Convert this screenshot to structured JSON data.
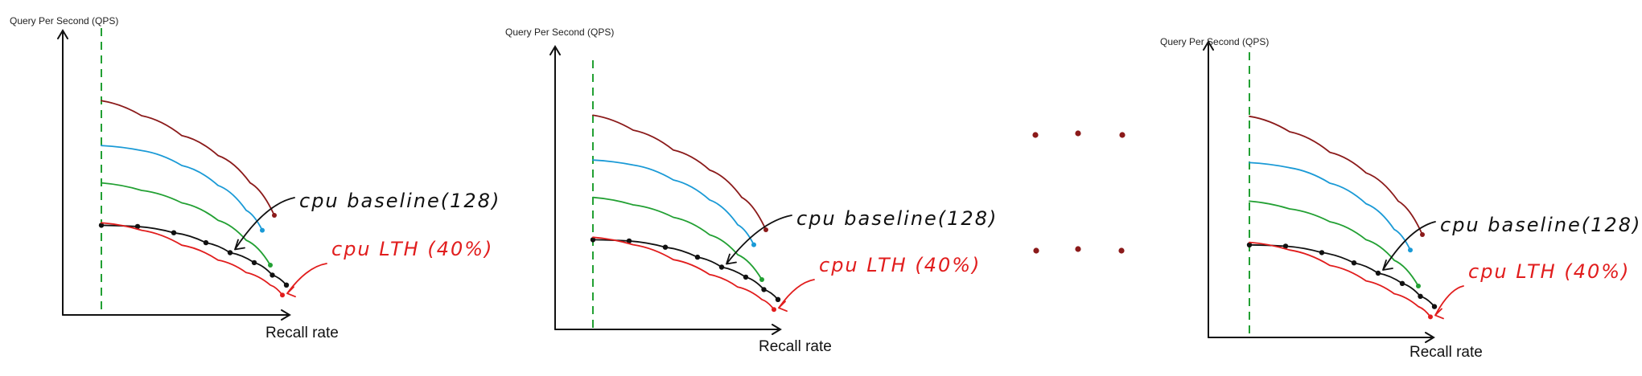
{
  "chart_data": [
    {
      "type": "line",
      "title": "",
      "xlabel": "Recall rate",
      "ylabel": "Query Per Second (QPS)",
      "grid": false,
      "annotations": [
        {
          "text": "cpu baseline(128)",
          "color": "#111111",
          "points_to": "cpu baseline"
        },
        {
          "text": "cpu LTH (40%)",
          "color": "#e11d1d",
          "points_to": "cpu LTH"
        }
      ],
      "series": [
        {
          "color": "#8b1a1a",
          "x": [
            0.0,
            0.2,
            0.4,
            0.58,
            0.74,
            0.86
          ],
          "y": [
            0.86,
            0.8,
            0.72,
            0.64,
            0.53,
            0.4
          ]
        },
        {
          "color": "#1a9ad6",
          "x": [
            0.0,
            0.2,
            0.4,
            0.58,
            0.72,
            0.8
          ],
          "y": [
            0.68,
            0.66,
            0.6,
            0.52,
            0.42,
            0.34
          ]
        },
        {
          "color": "#22a033",
          "x": [
            0.0,
            0.2,
            0.4,
            0.58,
            0.72,
            0.84
          ],
          "y": [
            0.53,
            0.5,
            0.45,
            0.38,
            0.3,
            0.2
          ]
        },
        {
          "name": "cpu baseline",
          "color": "#111111",
          "markers": true,
          "x": [
            0.0,
            0.18,
            0.36,
            0.52,
            0.64,
            0.76,
            0.85,
            0.92
          ],
          "y": [
            0.36,
            0.355,
            0.33,
            0.29,
            0.25,
            0.21,
            0.16,
            0.12
          ]
        },
        {
          "name": "cpu LTH",
          "color": "#e11d1d",
          "x": [
            0.0,
            0.2,
            0.4,
            0.58,
            0.72,
            0.84,
            0.9
          ],
          "y": [
            0.37,
            0.34,
            0.28,
            0.22,
            0.17,
            0.12,
            0.08
          ]
        }
      ]
    },
    {
      "type": "line",
      "title": "",
      "xlabel": "Recall rate",
      "ylabel": "Query Per Second (QPS)",
      "grid": false,
      "annotations": [
        {
          "text": "cpu baseline(128)",
          "color": "#111111",
          "points_to": "cpu baseline"
        },
        {
          "text": "cpu LTH (40%)",
          "color": "#e11d1d",
          "points_to": "cpu LTH"
        }
      ],
      "series": [
        {
          "color": "#8b1a1a",
          "x": [
            0.0,
            0.2,
            0.4,
            0.58,
            0.74,
            0.86
          ],
          "y": [
            0.86,
            0.8,
            0.72,
            0.64,
            0.53,
            0.4
          ]
        },
        {
          "color": "#1a9ad6",
          "x": [
            0.0,
            0.2,
            0.4,
            0.58,
            0.72,
            0.8
          ],
          "y": [
            0.68,
            0.66,
            0.6,
            0.52,
            0.42,
            0.34
          ]
        },
        {
          "color": "#22a033",
          "x": [
            0.0,
            0.2,
            0.4,
            0.58,
            0.72,
            0.84
          ],
          "y": [
            0.53,
            0.5,
            0.45,
            0.38,
            0.3,
            0.2
          ]
        },
        {
          "name": "cpu baseline",
          "color": "#111111",
          "markers": true,
          "x": [
            0.0,
            0.18,
            0.36,
            0.52,
            0.64,
            0.76,
            0.85,
            0.92
          ],
          "y": [
            0.36,
            0.355,
            0.33,
            0.29,
            0.25,
            0.21,
            0.16,
            0.12
          ]
        },
        {
          "name": "cpu LTH",
          "color": "#e11d1d",
          "x": [
            0.0,
            0.2,
            0.4,
            0.58,
            0.72,
            0.84,
            0.9
          ],
          "y": [
            0.37,
            0.34,
            0.28,
            0.22,
            0.17,
            0.12,
            0.08
          ]
        }
      ]
    },
    {
      "type": "line",
      "title": "",
      "xlabel": "Recall rate",
      "ylabel": "Query Per Second (QPS)",
      "grid": false,
      "annotations": [
        {
          "text": "cpu baseline(128)",
          "color": "#111111",
          "points_to": "cpu baseline"
        },
        {
          "text": "cpu LTH (40%)",
          "color": "#e11d1d",
          "points_to": "cpu LTH"
        }
      ],
      "series": [
        {
          "color": "#8b1a1a",
          "x": [
            0.0,
            0.2,
            0.4,
            0.58,
            0.74,
            0.86
          ],
          "y": [
            0.86,
            0.8,
            0.72,
            0.64,
            0.53,
            0.4
          ]
        },
        {
          "color": "#1a9ad6",
          "x": [
            0.0,
            0.2,
            0.4,
            0.58,
            0.72,
            0.8
          ],
          "y": [
            0.68,
            0.66,
            0.6,
            0.52,
            0.42,
            0.34
          ]
        },
        {
          "color": "#22a033",
          "x": [
            0.0,
            0.2,
            0.4,
            0.58,
            0.72,
            0.84
          ],
          "y": [
            0.53,
            0.5,
            0.45,
            0.38,
            0.3,
            0.2
          ]
        },
        {
          "name": "cpu baseline",
          "color": "#111111",
          "markers": true,
          "x": [
            0.0,
            0.18,
            0.36,
            0.52,
            0.64,
            0.76,
            0.85,
            0.92
          ],
          "y": [
            0.36,
            0.355,
            0.33,
            0.29,
            0.25,
            0.21,
            0.16,
            0.12
          ]
        },
        {
          "name": "cpu LTH",
          "color": "#e11d1d",
          "x": [
            0.0,
            0.2,
            0.4,
            0.58,
            0.72,
            0.84,
            0.9
          ],
          "y": [
            0.37,
            0.34,
            0.28,
            0.22,
            0.17,
            0.12,
            0.08
          ]
        }
      ]
    }
  ],
  "ellipsis": {
    "color": "#8b1a1a",
    "rows": 2,
    "dots_per_row": 3
  }
}
